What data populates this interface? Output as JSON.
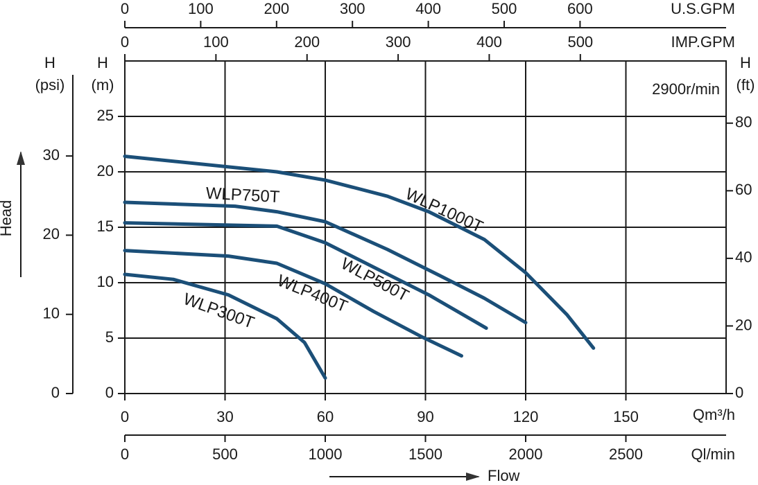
{
  "chart_data": {
    "type": "line",
    "annotation": "2900r/min",
    "x_label": "Qm³/h",
    "y_label": "H",
    "y_unit": "(m)",
    "x_axis_title": "Flow",
    "y_axis_title": "Head",
    "xlim": [
      0,
      180
    ],
    "xticks": [
      0,
      30,
      60,
      90,
      120,
      150
    ],
    "ylim": [
      0,
      30
    ],
    "yticks": [
      0,
      5,
      10,
      15,
      20,
      25
    ],
    "grid": true,
    "x2": {
      "label": "U.S.GPM",
      "lim": [
        0,
        792.5
      ],
      "ticks": [
        0,
        100,
        200,
        300,
        400,
        500,
        600
      ]
    },
    "x3": {
      "label": "IMP.GPM",
      "lim": [
        0,
        660
      ],
      "ticks": [
        0,
        100,
        200,
        300,
        400,
        500
      ]
    },
    "x4": {
      "label": "Ql/min",
      "lim": [
        0,
        3000
      ],
      "ticks": [
        0,
        500,
        1000,
        1500,
        2000,
        2500
      ]
    },
    "y2": {
      "label": "H",
      "unit": "(psi)",
      "lim": [
        0,
        42
      ],
      "ticks": [
        0,
        10,
        20,
        30
      ]
    },
    "y3": {
      "label": "H",
      "unit": "(ft)",
      "lim": [
        0,
        98.4
      ],
      "ticks": [
        0,
        20,
        40,
        60,
        80
      ]
    },
    "series": [
      {
        "name": "WLP1000T",
        "color": "#1b4f78",
        "x": [
          0,
          45.5,
          60,
          78.6,
          91,
          107.6,
          120,
          132.4,
          140.3
        ],
        "values": [
          21.4,
          20,
          19.25,
          17.8,
          16.4,
          13.9,
          10.9,
          7.1,
          4.1
        ]
      },
      {
        "name": "WLP750T",
        "color": "#1b4f78",
        "x": [
          0,
          33,
          45.5,
          60,
          78.6,
          95.2,
          107.6,
          120
        ],
        "values": [
          17.25,
          16.9,
          16.4,
          15.5,
          13,
          10.5,
          8.6,
          6.4
        ]
      },
      {
        "name": "WLP500T",
        "color": "#1b4f78",
        "x": [
          0,
          45.5,
          60,
          74.5,
          91,
          108.2
        ],
        "values": [
          15.4,
          15.1,
          13.6,
          11.4,
          8.9,
          5.9
        ]
      },
      {
        "name": "WLP400T",
        "color": "#1b4f78",
        "x": [
          0,
          31,
          45.5,
          60,
          74.5,
          89,
          100.8
        ],
        "values": [
          12.9,
          12.4,
          11.75,
          9.9,
          7.4,
          5.1,
          3.4
        ]
      },
      {
        "name": "WLP300T",
        "color": "#1b4f78",
        "x": [
          0,
          14.5,
          31,
          45.5,
          53.8,
          60
        ],
        "values": [
          10.75,
          10.3,
          8.9,
          6.75,
          4.6,
          1.4
        ]
      }
    ]
  }
}
